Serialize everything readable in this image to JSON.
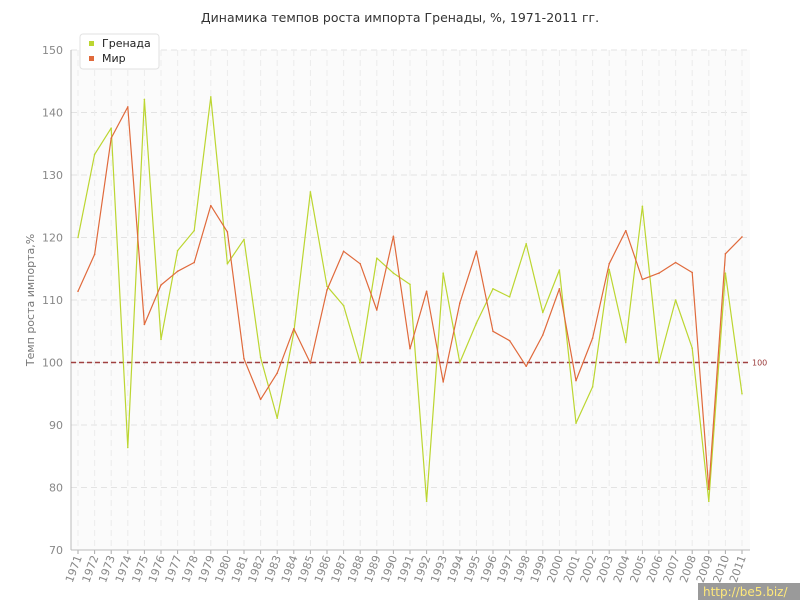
{
  "chart_data": {
    "type": "line",
    "title": "Динамика темпов роста импорта Гренады, %, 1971-2011 гг.",
    "ylabel": "Темп роста импорта,%",
    "xlabel": "",
    "ylim": [
      70,
      150
    ],
    "yticks": [
      70,
      80,
      90,
      100,
      110,
      120,
      130,
      140,
      150
    ],
    "grid": true,
    "legend": "top-left",
    "reference_line": {
      "value": 100,
      "label": "100",
      "color": "#a04040"
    },
    "x": [
      "1971",
      "1972",
      "1973",
      "1974",
      "1975",
      "1976",
      "1977",
      "1978",
      "1979",
      "1980",
      "1981",
      "1982",
      "1983",
      "1984",
      "1985",
      "1986",
      "1987",
      "1988",
      "1989",
      "1990",
      "1991",
      "1992",
      "1993",
      "1994",
      "1995",
      "1996",
      "1997",
      "1998",
      "1999",
      "2000",
      "2001",
      "2002",
      "2003",
      "2004",
      "2005",
      "2006",
      "2007",
      "2008",
      "2009",
      "2010",
      "2011"
    ],
    "series": [
      {
        "name": "Гренада",
        "color": "#bcd631",
        "values": [
          120,
          133.3,
          137.5,
          86.4,
          142.1,
          103.7,
          117.9,
          121.1,
          142.5,
          115.8,
          119.7,
          100.8,
          91.1,
          104.8,
          127.3,
          112.2,
          109.1,
          100,
          116.7,
          114.3,
          112.5,
          77.8,
          114.3,
          100,
          106.3,
          111.8,
          110.5,
          119,
          108,
          114.8,
          90.3,
          96.1,
          114.9,
          103.2,
          125,
          100,
          110,
          102.3,
          77.8,
          114.3,
          95
        ]
      },
      {
        "name": "Мир",
        "color": "#e06a3c",
        "values": [
          111.4,
          117.3,
          135.9,
          140.9,
          106.1,
          112.4,
          114.6,
          116,
          125.1,
          120.9,
          100.6,
          94.1,
          98.3,
          105.4,
          99.9,
          111.6,
          117.8,
          115.8,
          108.4,
          120.2,
          102.2,
          111.4,
          96.9,
          109.5,
          117.8,
          105,
          103.5,
          99.4,
          104.4,
          111.8,
          97.1,
          103.9,
          115.8,
          121.1,
          113.3,
          114.3,
          116,
          114.4,
          79.7,
          117.4,
          120.1
        ]
      }
    ]
  },
  "watermark": "http://be5.biz/"
}
